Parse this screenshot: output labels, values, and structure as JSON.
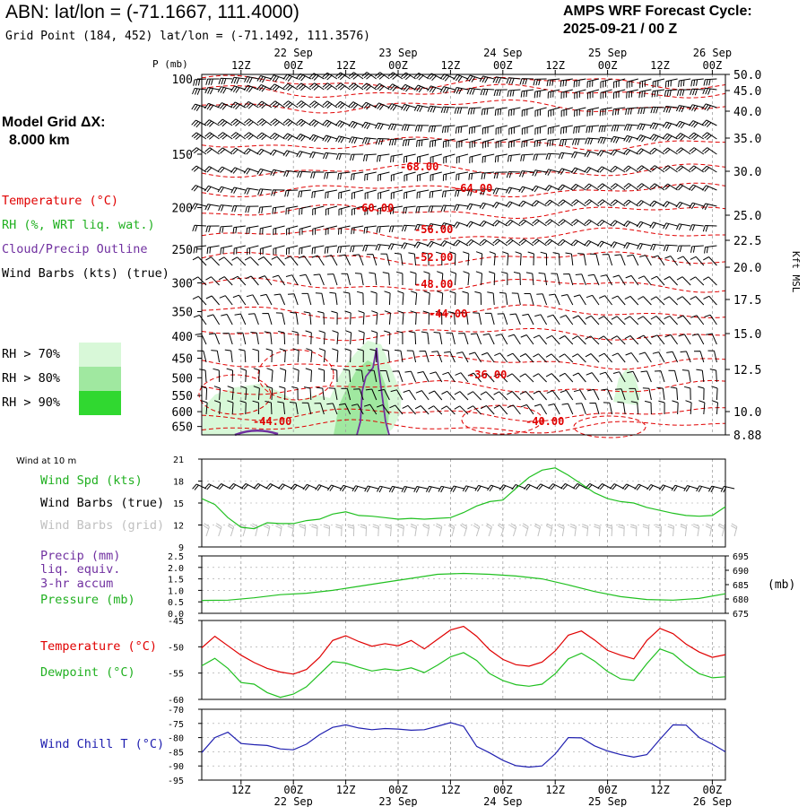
{
  "header": {
    "title": "ABN:  lat/lon = (-71.1667, 111.4000)",
    "grid_point": "Grid Point (184, 452) lat/lon = (-71.1492, 111.3576)",
    "cycle_line1": "AMPS WRF Forecast Cycle:",
    "cycle_line2": "2025-09-21 / 00  Z",
    "model_grid_line1": "Model Grid ΔX:",
    "model_grid_line2": "8.000 km"
  },
  "legend": {
    "temperature": "Temperature (°C)",
    "rh": "RH (%, WRT liq. wat.)",
    "cloud": "Cloud/Precip Outline",
    "wind": "Wind Barbs (kts) (true)",
    "rh70": "RH > 70%",
    "rh80": "RH > 80%",
    "rh90": "RH > 90%"
  },
  "colors": {
    "rh70": "#d8f8d8",
    "rh80": "#a0e8a0",
    "rh90": "#30d830",
    "temperature": "#e00000",
    "rh_line": "#20c020",
    "cloud": "#7030a0",
    "wind_chill": "#2020b0",
    "grid": "#a0a0a0"
  },
  "time_axis": {
    "top_hours": [
      "12Z",
      "00Z",
      "12Z",
      "00Z",
      "12Z",
      "00Z",
      "12Z",
      "00Z",
      "12Z",
      "00Z"
    ],
    "top_dates": [
      "22 Sep",
      "23 Sep",
      "24 Sep",
      "25 Sep",
      "26 Sep"
    ],
    "bottom_hours": [
      "12Z",
      "00Z",
      "12Z",
      "00Z",
      "12Z",
      "00Z",
      "12Z",
      "00Z",
      "12Z",
      "00Z"
    ],
    "bottom_dates": [
      "22 Sep",
      "23 Sep",
      "24 Sep",
      "25 Sep",
      "26 Sep"
    ]
  },
  "pressure_axis": {
    "label": "P (mb)",
    "ticks": [
      "100",
      "150",
      "200",
      "250",
      "300",
      "350",
      "400",
      "450",
      "500",
      "550",
      "600",
      "650"
    ]
  },
  "height_axis": {
    "label": "Kft MSL",
    "ticks": [
      "50.0",
      "45.0",
      "40.0",
      "35.0",
      "30.0",
      "25.0",
      "22.5",
      "20.0",
      "17.5",
      "15.0",
      "12.5",
      "10.0",
      "8.88"
    ]
  },
  "contour_labels": [
    "-68.00",
    "-64.00",
    "-60.00",
    "-56.00",
    "-52.00",
    "-48.00",
    "-44.00",
    "-36.00",
    "-44.00",
    "-40.00"
  ],
  "wind10": {
    "title": "Wind at 10 m",
    "spd_label": "Wind Spd (kts)",
    "barbs_true": "Wind Barbs (true)",
    "barbs_grid": "Wind Barbs (grid)",
    "yticks": [
      "21",
      "18",
      "15",
      "12",
      "9"
    ]
  },
  "precip": {
    "label1": "Precip (mm)",
    "label2": "liq. equiv.",
    "label3": "3-hr accum",
    "pressure_label": "Pressure (mb)",
    "left_ticks": [
      "2.5",
      "2.0",
      "1.5",
      "1.0",
      "0.5",
      "0.0"
    ],
    "right_ticks": [
      "695",
      "690",
      "685",
      "680",
      "675"
    ],
    "right_unit": "(mb)"
  },
  "temp_panel": {
    "temp_label": "Temperature (°C)",
    "dew_label": "Dewpoint (°C)",
    "yticks": [
      "-45",
      "-50",
      "-55",
      "-60"
    ]
  },
  "chill_panel": {
    "label": "Wind Chill T (°C)",
    "yticks": [
      "-70",
      "-75",
      "-80",
      "-85",
      "-90",
      "-95"
    ]
  },
  "chart_data": [
    {
      "type": "line",
      "title": "Wind at 10 m",
      "x_hours": [
        0,
        3,
        6,
        9,
        12,
        15,
        18,
        21,
        24,
        27,
        30,
        33,
        36,
        39,
        42,
        45,
        48,
        51,
        54,
        57,
        60,
        63,
        66,
        69,
        72,
        75,
        78,
        81,
        84,
        87,
        90,
        93,
        96,
        99,
        102,
        105,
        108,
        111,
        114,
        117,
        120
      ],
      "series": [
        {
          "name": "Wind Spd (kts)",
          "values": [
            15.6,
            14.8,
            13.0,
            11.7,
            11.5,
            12.3,
            12.2,
            12.2,
            12.6,
            12.8,
            13.5,
            13.8,
            13.3,
            13.2,
            13.0,
            12.8,
            12.9,
            12.8,
            12.9,
            13.0,
            13.7,
            14.6,
            15.2,
            15.4,
            17.0,
            18.5,
            19.5,
            19.8,
            18.8,
            17.6,
            16.4,
            15.6,
            15.2,
            15.0,
            14.4,
            14.0,
            13.6,
            13.3,
            13.2,
            13.3,
            14.5
          ]
        }
      ],
      "ylim": [
        9,
        21
      ]
    },
    {
      "type": "line",
      "title": "Pressure (mb)",
      "x_hours": [
        0,
        6,
        12,
        18,
        24,
        30,
        36,
        42,
        48,
        54,
        60,
        66,
        72,
        78,
        84,
        90,
        96,
        102,
        108,
        114,
        120
      ],
      "series": [
        {
          "name": "Pressure (mb)",
          "values": [
            679.5,
            679.6,
            680.4,
            681.5,
            682.0,
            683.0,
            684.4,
            685.8,
            687.2,
            688.6,
            688.9,
            688.6,
            688.0,
            687.0,
            684.9,
            682.6,
            680.8,
            679.8,
            679.6,
            680.2,
            681.8
          ]
        }
      ],
      "ylim": [
        675,
        695
      ]
    },
    {
      "type": "line",
      "title": "Temperature / Dewpoint",
      "x_hours": [
        0,
        3,
        6,
        9,
        12,
        15,
        18,
        21,
        24,
        27,
        30,
        33,
        36,
        39,
        42,
        45,
        48,
        51,
        54,
        57,
        60,
        63,
        66,
        69,
        72,
        75,
        78,
        81,
        84,
        87,
        90,
        93,
        96,
        99,
        102,
        105,
        108,
        111,
        114,
        117,
        120
      ],
      "series": [
        {
          "name": "Temperature (°C)",
          "values": [
            -50.2,
            -48.0,
            -49.8,
            -51.6,
            -53.0,
            -54.1,
            -54.8,
            -55.2,
            -54.3,
            -52.0,
            -48.8,
            -47.9,
            -49.0,
            -49.9,
            -49.4,
            -49.8,
            -48.8,
            -50.4,
            -48.6,
            -46.8,
            -46.1,
            -48.0,
            -50.6,
            -52.4,
            -53.4,
            -53.7,
            -52.9,
            -50.8,
            -47.8,
            -47.0,
            -48.7,
            -50.7,
            -51.6,
            -52.3,
            -48.8,
            -46.5,
            -47.5,
            -49.5,
            -51.0,
            -52.0,
            -51.5
          ]
        },
        {
          "name": "Dewpoint (°C)",
          "values": [
            -53.6,
            -52.2,
            -54.1,
            -56.8,
            -57.1,
            -58.7,
            -59.6,
            -59.0,
            -57.6,
            -55.2,
            -52.8,
            -53.1,
            -53.9,
            -54.6,
            -54.2,
            -54.5,
            -54.0,
            -54.9,
            -53.5,
            -51.9,
            -51.1,
            -52.6,
            -55.1,
            -56.4,
            -57.2,
            -57.5,
            -57.1,
            -55.1,
            -52.3,
            -51.2,
            -52.7,
            -54.7,
            -56.1,
            -56.4,
            -53.2,
            -50.4,
            -51.3,
            -53.4,
            -55.1,
            -55.9,
            -55.7
          ]
        }
      ],
      "ylim": [
        -60,
        -45
      ]
    },
    {
      "type": "line",
      "title": "Wind Chill T",
      "x_hours": [
        0,
        3,
        6,
        9,
        12,
        15,
        18,
        21,
        24,
        27,
        30,
        33,
        36,
        39,
        42,
        45,
        48,
        51,
        54,
        57,
        60,
        63,
        66,
        69,
        72,
        75,
        78,
        81,
        84,
        87,
        90,
        93,
        96,
        99,
        102,
        105,
        108,
        111,
        114,
        117,
        120
      ],
      "series": [
        {
          "name": "Wind Chill T (°C)",
          "values": [
            -85.3,
            -80.0,
            -78.1,
            -82.1,
            -82.5,
            -82.8,
            -84.0,
            -84.3,
            -82.3,
            -79.0,
            -76.4,
            -75.5,
            -76.6,
            -77.2,
            -76.8,
            -77.0,
            -77.4,
            -77.2,
            -76.0,
            -74.7,
            -76.0,
            -83.1,
            -85.4,
            -88.0,
            -89.9,
            -90.4,
            -90.0,
            -85.8,
            -80.0,
            -80.1,
            -82.9,
            -84.7,
            -86.0,
            -86.9,
            -86.0,
            -80.6,
            -75.5,
            -75.6,
            -80.0,
            -82.3,
            -85.0
          ]
        }
      ],
      "ylim": [
        -95,
        -70
      ]
    }
  ]
}
